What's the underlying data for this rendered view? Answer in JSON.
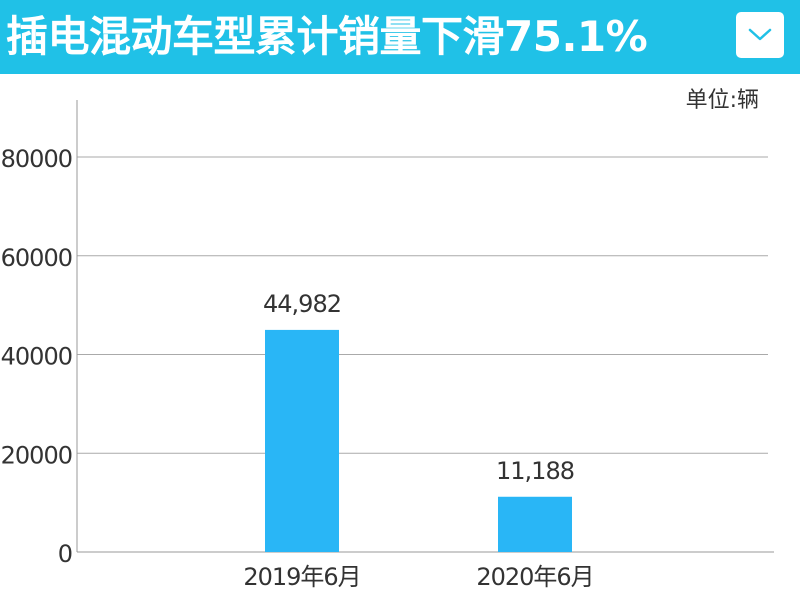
{
  "header": {
    "title": "插电混动车型累计销量下滑75.1%",
    "background_color": "#20c1e7",
    "dropdown_icon": "chevron-down-icon"
  },
  "chart_data": {
    "type": "bar",
    "unit_label": "单位:辆",
    "categories": [
      "2019年6月",
      "2020年6月"
    ],
    "values": [
      44982,
      11188
    ],
    "data_labels": [
      "44,982",
      "11,188"
    ],
    "y_ticks": [
      "0",
      "20000",
      "40000",
      "60000",
      "80000"
    ],
    "ylim": [
      0,
      90000
    ],
    "grid": true,
    "bar_color": "#29b6f6",
    "title": "",
    "xlabel": "",
    "ylabel": ""
  }
}
